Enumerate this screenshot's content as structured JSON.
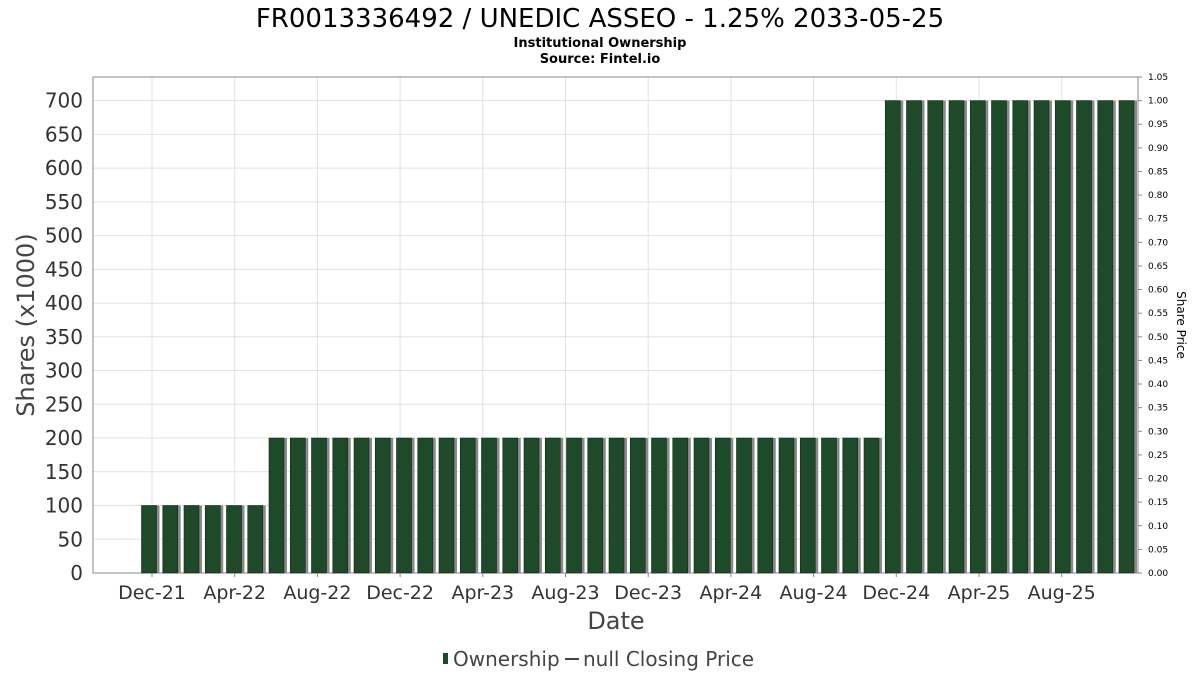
{
  "title": "FR0013336492 / UNEDIC ASSEO - 1.25% 2033-05-25",
  "subtitle1": "Institutional Ownership",
  "subtitle2": "Source: Fintel.io",
  "chart_data": {
    "type": "bar",
    "xlabel": "Date",
    "ylabel": "Shares (x1000)",
    "ylabel_right": "Share Price",
    "ylim": [
      0,
      700
    ],
    "ylim_right": [
      0,
      1.05
    ],
    "yticks": [
      0,
      50,
      100,
      150,
      200,
      250,
      300,
      350,
      400,
      450,
      500,
      550,
      600,
      650,
      700
    ],
    "yticks_right": [
      "0.00",
      "0.05",
      "0.10",
      "0.15",
      "0.20",
      "0.25",
      "0.30",
      "0.35",
      "0.40",
      "0.45",
      "0.50",
      "0.55",
      "0.60",
      "0.65",
      "0.70",
      "0.75",
      "0.80",
      "0.85",
      "0.90",
      "0.95",
      "1.00",
      "1.05"
    ],
    "x_tick_labels": [
      "Dec-21",
      "Apr-22",
      "Aug-22",
      "Dec-22",
      "Apr-23",
      "Aug-23",
      "Dec-23",
      "Apr-24",
      "Aug-24",
      "Dec-24",
      "Apr-25",
      "Aug-25"
    ],
    "grid": true,
    "legend_position": "bottom",
    "series": [
      {
        "name": "Ownership",
        "color": "#1e4a2a",
        "values": [
          100,
          100,
          100,
          100,
          100,
          100,
          200,
          200,
          200,
          200,
          200,
          200,
          200,
          200,
          200,
          200,
          200,
          200,
          200,
          200,
          200,
          200,
          200,
          200,
          200,
          200,
          200,
          200,
          200,
          200,
          200,
          200,
          200,
          200,
          200,
          700,
          700,
          700,
          700,
          700,
          700,
          700,
          700,
          700,
          700,
          700,
          700
        ]
      },
      {
        "name": "null Closing Price",
        "color": "#444444",
        "values": []
      }
    ]
  }
}
